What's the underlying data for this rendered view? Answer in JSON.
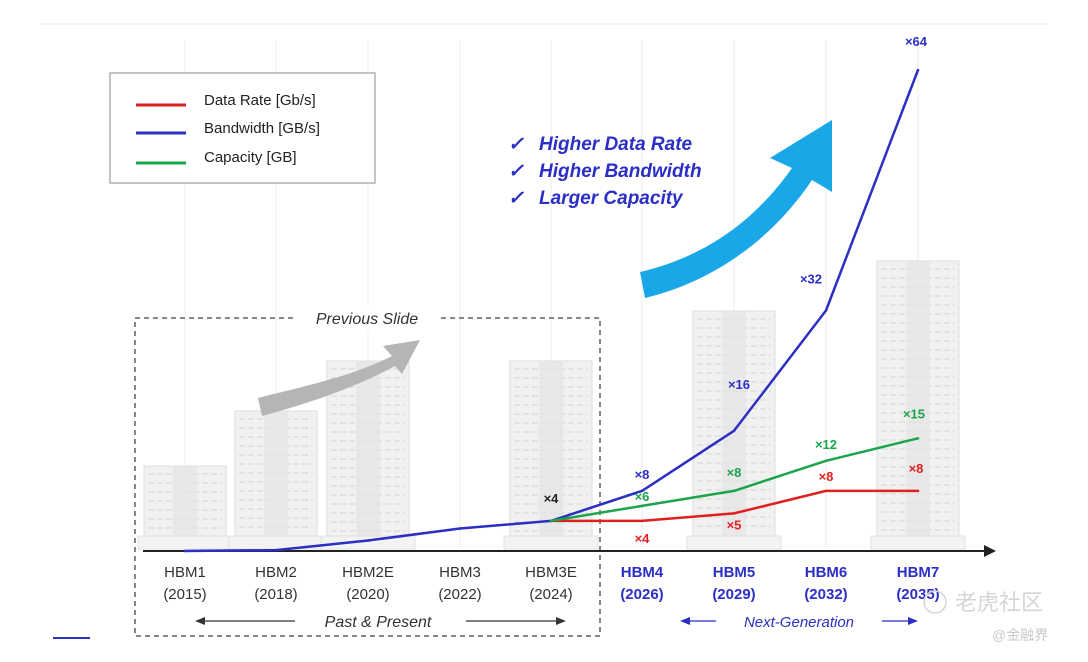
{
  "chart_data": {
    "type": "line",
    "categories": [
      "HBM1",
      "HBM2",
      "HBM2E",
      "HBM3",
      "HBM3E",
      "HBM4",
      "HBM5",
      "HBM6",
      "HBM7"
    ],
    "category_years": [
      "(2015)",
      "(2018)",
      "(2020)",
      "(2022)",
      "(2024)",
      "(2026)",
      "(2029)",
      "(2032)",
      "(2035)"
    ],
    "series": [
      {
        "name": "Data Rate [Gb/s]",
        "color": "#e02020",
        "values": [
          null,
          null,
          null,
          null,
          1,
          1,
          1.25,
          2,
          2
        ],
        "labels": [
          null,
          null,
          null,
          null,
          null,
          "×4",
          "×5",
          "×8",
          "×8"
        ]
      },
      {
        "name": "Bandwidth [GB/s]",
        "color": "#2b2fc4",
        "values": [
          0,
          0.03,
          0.35,
          0.75,
          1,
          2,
          4,
          8,
          16
        ],
        "labels": [
          null,
          null,
          null,
          null,
          "×4",
          "×8",
          "×16",
          "×32",
          "×64"
        ]
      },
      {
        "name": "Capacity [GB]",
        "color": "#1aa54b",
        "values": [
          null,
          null,
          null,
          null,
          1,
          1.5,
          2,
          3,
          3.75
        ],
        "labels": [
          null,
          null,
          null,
          null,
          null,
          "×6",
          "×8",
          "×12",
          "×15"
        ]
      }
    ],
    "legend_position": "top-left",
    "checklist": [
      "Higher Data Rate",
      "Higher Bandwidth",
      "Larger Capacity"
    ],
    "previous_slide_label": "Previous Slide",
    "past_label": "Past & Present",
    "next_label": "Next-Generation",
    "check_mark": "✓",
    "colors": {
      "next_gen_text": "#2b2fc4",
      "arrow_big": "#1aa7e8",
      "arrow_small": "#b5b5b5",
      "axis": "#222222"
    }
  },
  "watermark": {
    "main": "老虎社区",
    "sub": "@金融界"
  }
}
